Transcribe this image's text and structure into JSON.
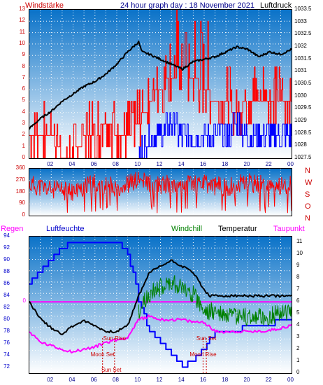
{
  "header": {
    "left_title": "Windstärke",
    "center_title": "24 hour graph day : 18 November 2021",
    "right_title": "Luftdruck"
  },
  "lower_header": {
    "regen": "Regen",
    "luftfeuchte": "Luftfeuchte",
    "windchill": "Windchill",
    "temperatur": "Temperatur",
    "taupunkt": "Taupunkt"
  },
  "colors": {
    "wind": "#ff0000",
    "gust": "#0000ff",
    "pressure": "#000000",
    "humidity": "#0000ff",
    "windchill": "#008000",
    "temperature": "#000000",
    "dewpoint": "#ff00ff",
    "rain": "#ff00ff",
    "annotation": "#cc0000",
    "bg_top": "#0a72c8",
    "bg_bottom": "#ffffff"
  },
  "chart_data": [
    {
      "type": "line",
      "name": "wind-pressure",
      "x_ticks": [
        "02",
        "04",
        "06",
        "08",
        "10",
        "12",
        "14",
        "16",
        "18",
        "20",
        "22",
        "00"
      ],
      "left_axis": {
        "label": "Windstärke",
        "ticks": [
          "0",
          "1",
          "2",
          "3",
          "4",
          "5",
          "6",
          "7",
          "8",
          "9",
          "10",
          "11",
          "12",
          "13"
        ],
        "ylim": [
          0,
          13
        ]
      },
      "right_axis": {
        "label": "Luftdruck",
        "ticks": [
          "1027.5",
          "1028",
          "1028.5",
          "1029",
          "1029.5",
          "1030",
          "1030.5",
          "1031",
          "1031.5",
          "1032",
          "1032.5",
          "1033",
          "1033.5"
        ],
        "ylim": [
          1027.5,
          1033.5
        ]
      },
      "series": [
        {
          "name": "Luftdruck",
          "x": [
            0,
            1,
            2,
            3,
            4,
            5,
            6,
            7,
            8,
            9,
            9.5,
            10,
            10.3,
            11,
            12,
            13,
            14,
            15,
            16,
            17,
            18,
            19,
            20,
            21,
            22,
            23,
            24
          ],
          "values": [
            1028.7,
            1029.1,
            1029.4,
            1029.8,
            1030.1,
            1030.4,
            1030.6,
            1030.9,
            1031.3,
            1031.8,
            1032.0,
            1032.2,
            1031.8,
            1031.7,
            1031.5,
            1031.3,
            1031.1,
            1031.4,
            1031.5,
            1031.6,
            1031.8,
            1032.0,
            1031.9,
            1031.6,
            1031.8,
            1031.7,
            1031.9
          ]
        },
        {
          "name": "Windstärke",
          "x": [
            0,
            1,
            2,
            3,
            4,
            5,
            6,
            7,
            8,
            9,
            10,
            11,
            12,
            13,
            14,
            15,
            16,
            17,
            18,
            19,
            20,
            21,
            22,
            23,
            24
          ],
          "values": [
            2,
            2,
            2,
            0,
            0,
            2,
            2,
            3,
            2,
            2,
            3,
            5,
            6,
            7,
            8,
            7,
            6,
            5,
            5,
            4,
            5,
            5,
            5,
            5,
            5
          ]
        },
        {
          "name": "Böen",
          "x": [
            0,
            10,
            11,
            12,
            13,
            14,
            15,
            16,
            17,
            18,
            19,
            20,
            21,
            22,
            23,
            24
          ],
          "values": [
            0,
            0,
            2,
            2,
            3,
            2,
            2,
            2,
            2,
            2,
            3,
            2,
            2,
            2,
            2,
            2
          ]
        }
      ]
    },
    {
      "type": "line",
      "name": "wind-direction",
      "x_ticks": [
        "02",
        "04",
        "06",
        "08",
        "10",
        "12",
        "14",
        "16",
        "18",
        "20",
        "22",
        "00"
      ],
      "left_axis": {
        "ticks": [
          "0",
          "90",
          "180",
          "270",
          "360"
        ],
        "ylim": [
          0,
          360
        ]
      },
      "right_labels": [
        "N",
        "W",
        "S",
        "O",
        "N"
      ],
      "series": [
        {
          "name": "Windrichtung",
          "x": [
            0,
            2,
            4,
            6,
            8,
            10,
            12,
            14,
            16,
            18,
            20,
            22,
            24
          ],
          "values": [
            240,
            200,
            180,
            250,
            220,
            270,
            230,
            260,
            240,
            220,
            250,
            230,
            240
          ]
        }
      ]
    },
    {
      "type": "line",
      "name": "humidity-temperature",
      "x_ticks": [
        "02",
        "04",
        "06",
        "08",
        "10",
        "12",
        "14",
        "16",
        "18",
        "20",
        "22",
        "00"
      ],
      "left_axis": {
        "label": "Luftfeuchte",
        "ticks": [
          "72",
          "74",
          "76",
          "78",
          "80",
          "82",
          "84",
          "86",
          "88",
          "90",
          "92",
          "94"
        ],
        "ylim": [
          71,
          94
        ]
      },
      "right_axis": {
        "label": "Temperatur",
        "ticks": [
          "0",
          "1",
          "2",
          "3",
          "4",
          "5",
          "6",
          "7",
          "8",
          "9",
          "10",
          "11"
        ],
        "ylim": [
          0,
          11.5
        ]
      },
      "rain_axis": {
        "label": "Regen",
        "ticks": [
          "0"
        ]
      },
      "series": [
        {
          "name": "Luftfeuchte",
          "x": [
            0,
            1,
            2,
            3,
            4,
            5,
            6,
            7,
            8,
            8.8,
            9.5,
            10,
            11,
            12,
            13,
            14,
            15,
            16,
            17,
            18,
            19,
            20,
            21,
            22,
            23,
            24
          ],
          "values": [
            86,
            88,
            90,
            92,
            93,
            93,
            93,
            93,
            93,
            92,
            88,
            83,
            78,
            76,
            74,
            72,
            73,
            75,
            78,
            78,
            78,
            79,
            79,
            79,
            80,
            80
          ]
        },
        {
          "name": "Temperatur",
          "x": [
            0,
            1,
            2,
            3,
            4,
            5,
            6,
            7,
            8,
            9,
            10,
            11,
            12,
            13,
            14,
            15,
            16,
            16.5,
            17,
            18,
            19,
            20,
            21,
            22,
            23,
            24
          ],
          "values": [
            6.0,
            4.6,
            3.8,
            3.3,
            4.0,
            4.4,
            4.0,
            3.5,
            3.5,
            4.0,
            6.5,
            8.5,
            9.0,
            9.5,
            9.0,
            8.5,
            7.0,
            6.5,
            6.5,
            6.5,
            6.5,
            6.5,
            6.5,
            6.5,
            6.5,
            6.5
          ]
        },
        {
          "name": "Windchill",
          "x": [
            10,
            11,
            12,
            13,
            14,
            15,
            16,
            17,
            18,
            19,
            20,
            21,
            22,
            23,
            24
          ],
          "values": [
            6.0,
            7.5,
            8.0,
            8.5,
            8.0,
            7.5,
            6.0,
            6.0,
            5.5,
            5.5,
            5.5,
            5.5,
            5.5,
            6.0,
            6.0
          ]
        },
        {
          "name": "Taupunkt",
          "x": [
            0,
            1,
            2,
            3,
            4,
            5,
            6,
            7,
            8,
            9,
            10,
            11,
            12,
            13,
            14,
            15,
            16,
            17,
            18,
            19,
            20,
            21,
            22,
            23,
            24
          ],
          "values": [
            3.5,
            2.6,
            2.3,
            2.0,
            1.8,
            2.0,
            2.2,
            2.6,
            2.8,
            3.0,
            4.5,
            4.8,
            4.5,
            4.5,
            4.5,
            4.3,
            4.3,
            3.5,
            3.5,
            3.5,
            3.5,
            3.5,
            3.6,
            3.8,
            4.0
          ]
        }
      ],
      "annotations": [
        {
          "text": "Sun Rise",
          "x": 7.8
        },
        {
          "text": "Moon Set",
          "x": 6.7
        },
        {
          "text": "Sun Set",
          "x": 16.2
        },
        {
          "text": "Moon Rise",
          "x": 15.9
        },
        {
          "text": "Sun Set",
          "x": 7.5
        }
      ]
    }
  ]
}
